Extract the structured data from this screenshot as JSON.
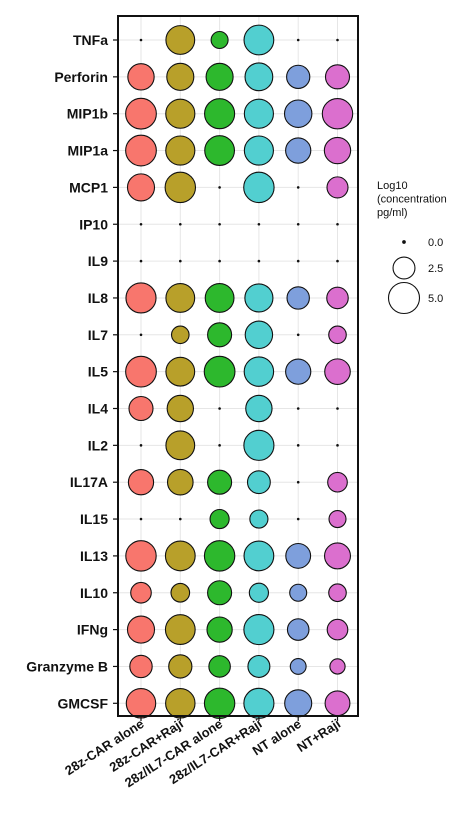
{
  "chart_data": {
    "type": "scatter",
    "subtype": "dot-plot",
    "groups": [
      "28z-CAR alone",
      "28z-CAR+Raji",
      "28z/IL7-CAR alone",
      "28z/IL7-CAR+Raji",
      "NT alone",
      "NT+Raji"
    ],
    "group_colors": [
      "#f8766d",
      "#b8a02a",
      "#2db82d",
      "#52cfd0",
      "#7e9fdc",
      "#db6fce"
    ],
    "cytokines": [
      "TNFa",
      "Perforin",
      "MIP1b",
      "MIP1a",
      "MCP1",
      "IP10",
      "IL9",
      "IL8",
      "IL7",
      "IL5",
      "IL4",
      "IL2",
      "IL17A",
      "IL15",
      "IL13",
      "IL10",
      "IFNg",
      "Granzyme B",
      "GMCSF"
    ],
    "size_variable": "Log10 (concentration pg/ml)",
    "values": [
      [
        0.0,
        4.3,
        1.5,
        4.6,
        0.0,
        0.0
      ],
      [
        3.6,
        3.8,
        3.8,
        4.0,
        2.8,
        3.0
      ],
      [
        4.9,
        4.4,
        4.7,
        4.4,
        3.9,
        4.8
      ],
      [
        4.9,
        4.4,
        4.6,
        4.4,
        3.3,
        3.6
      ],
      [
        3.8,
        4.8,
        0.0,
        4.8,
        0.0,
        2.3
      ],
      [
        0.0,
        0.0,
        0.0,
        0.0,
        0.0,
        0.0
      ],
      [
        0.0,
        0.0,
        0.0,
        0.0,
        0.0,
        0.0
      ],
      [
        4.7,
        4.3,
        4.3,
        4.1,
        2.6,
        2.4
      ],
      [
        0.0,
        1.6,
        3.0,
        3.9,
        0.0,
        1.6
      ],
      [
        4.9,
        4.3,
        4.9,
        4.5,
        3.3,
        3.4
      ],
      [
        3.0,
        3.6,
        0.0,
        3.6,
        0.0,
        0.0
      ],
      [
        0.0,
        4.3,
        0.0,
        4.7,
        0.0,
        0.0
      ],
      [
        3.3,
        3.4,
        3.0,
        2.7,
        0.0,
        2.0
      ],
      [
        0.0,
        0.0,
        1.9,
        1.7,
        0.0,
        1.5
      ],
      [
        4.8,
        4.6,
        4.8,
        4.6,
        3.2,
        3.5
      ],
      [
        2.2,
        1.8,
        3.0,
        1.9,
        1.5,
        1.6
      ],
      [
        3.8,
        4.6,
        3.3,
        4.7,
        2.4,
        2.2
      ],
      [
        2.6,
        2.8,
        2.4,
        2.5,
        1.3,
        1.2
      ],
      [
        4.5,
        4.5,
        4.8,
        4.7,
        3.8,
        3.2
      ]
    ],
    "legend": {
      "title": "Log10 (concentration pg/ml)",
      "title_lines": [
        "Log10",
        "(concentration",
        " pg/ml)"
      ],
      "placement": "right",
      "levels": [
        {
          "label": "0.0",
          "value": 0.0
        },
        {
          "label": "2.5",
          "value": 2.5
        },
        {
          "label": "5.0",
          "value": 5.0
        }
      ]
    },
    "grid": true,
    "size_range": [
      0,
      5.0
    ]
  }
}
